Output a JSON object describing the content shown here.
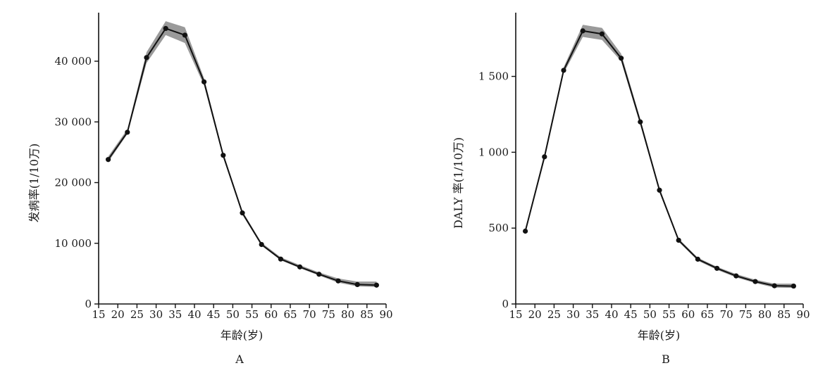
{
  "chart_data": [
    {
      "type": "line",
      "panel_label": "A",
      "xlabel": "年龄(岁)",
      "ylabel": "发病率(1/10万)",
      "xlim": [
        15,
        90
      ],
      "ylim": [
        0,
        48000
      ],
      "x_ticks": [
        15,
        20,
        25,
        30,
        35,
        40,
        45,
        50,
        55,
        60,
        65,
        70,
        75,
        80,
        85,
        90
      ],
      "y_ticks": [
        0,
        10000,
        20000,
        30000,
        40000
      ],
      "y_tick_labels": [
        "0",
        "10 000",
        "20 000",
        "30 000",
        "40 000"
      ],
      "x": [
        17.5,
        22.5,
        27.5,
        32.5,
        37.5,
        42.5,
        47.5,
        52.5,
        57.5,
        62.5,
        67.5,
        72.5,
        77.5,
        82.5,
        87.5
      ],
      "values": [
        23800,
        28300,
        40600,
        45400,
        44300,
        36600,
        24500,
        15000,
        9800,
        7400,
        6100,
        4900,
        3800,
        3200,
        3100
      ],
      "lower": [
        23400,
        28000,
        39700,
        44300,
        43000,
        36000,
        24100,
        14700,
        9600,
        7200,
        5900,
        4700,
        3500,
        2900,
        2800
      ],
      "upper": [
        24300,
        28800,
        41500,
        46600,
        45600,
        37200,
        24900,
        15300,
        10100,
        7700,
        6400,
        5200,
        4200,
        3700,
        3700
      ],
      "grid": false,
      "colors": {
        "line": "#111111",
        "band": "#9a9a9a"
      }
    },
    {
      "type": "line",
      "panel_label": "B",
      "xlabel": "年龄(岁)",
      "ylabel": "DALY 率(1/10万)",
      "xlim": [
        15,
        90
      ],
      "ylim": [
        0,
        1920
      ],
      "x_ticks": [
        15,
        20,
        25,
        30,
        35,
        40,
        45,
        50,
        55,
        60,
        65,
        70,
        75,
        80,
        85,
        90
      ],
      "y_ticks": [
        0,
        500,
        1000,
        1500
      ],
      "y_tick_labels": [
        "0",
        "500",
        "1 000",
        "1 500"
      ],
      "x": [
        17.5,
        22.5,
        27.5,
        32.5,
        37.5,
        42.5,
        47.5,
        52.5,
        57.5,
        62.5,
        67.5,
        72.5,
        77.5,
        82.5,
        87.5
      ],
      "values": [
        480,
        970,
        1540,
        1800,
        1780,
        1620,
        1200,
        750,
        420,
        295,
        235,
        185,
        148,
        120,
        118
      ],
      "lower": [
        470,
        950,
        1520,
        1760,
        1740,
        1600,
        1180,
        735,
        410,
        285,
        225,
        175,
        138,
        108,
        106
      ],
      "upper": [
        490,
        990,
        1560,
        1840,
        1820,
        1650,
        1220,
        765,
        430,
        305,
        245,
        197,
        160,
        134,
        134
      ],
      "grid": false,
      "colors": {
        "line": "#111111",
        "band": "#9a9a9a"
      }
    }
  ]
}
